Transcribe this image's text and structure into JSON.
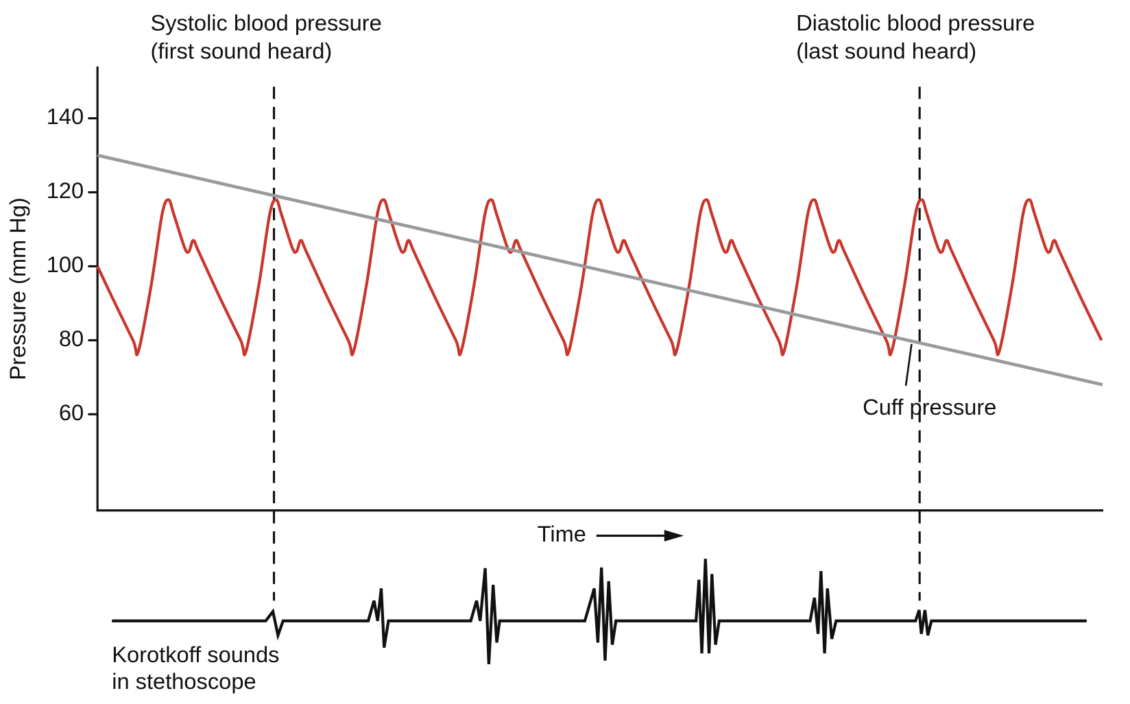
{
  "chart_data": {
    "type": "line",
    "ylabel": "Pressure (mm Hg)",
    "xlabel": "Time",
    "xlim": [
      0,
      9.34
    ],
    "ylim": [
      34,
      154
    ],
    "yticks": [
      60,
      80,
      100,
      120,
      140
    ],
    "series": [
      {
        "color": "#c8372d",
        "x": [
          0,
          0.13,
          0.33,
          0.38,
          0.5,
          0.6,
          0.66,
          0.71,
          0.81,
          0.85,
          0.89,
          0.94,
          1.13,
          1.33,
          1.38,
          1.5,
          1.6,
          1.66,
          1.71,
          1.81,
          1.85,
          1.89,
          1.94,
          2.13,
          2.33,
          2.38,
          2.5,
          2.6,
          2.66,
          2.71,
          2.81,
          2.85,
          2.89,
          2.94,
          3.13,
          3.33,
          3.38,
          3.5,
          3.6,
          3.66,
          3.71,
          3.81,
          3.85,
          3.89,
          3.94,
          4.13,
          4.33,
          4.38,
          4.5,
          4.6,
          4.66,
          4.71,
          4.81,
          4.85,
          4.89,
          4.94,
          5.13,
          5.33,
          5.38,
          5.5,
          5.6,
          5.66,
          5.71,
          5.81,
          5.85,
          5.89,
          5.94,
          6.13,
          6.33,
          6.38,
          6.5,
          6.6,
          6.66,
          6.71,
          6.81,
          6.85,
          6.89,
          6.94,
          7.13,
          7.33,
          7.38,
          7.5,
          7.6,
          7.66,
          7.71,
          7.81,
          7.85,
          7.89,
          7.94,
          8.13,
          8.33,
          8.38,
          8.5,
          8.6,
          8.66,
          8.71,
          8.81,
          8.85,
          8.89,
          8.94,
          9.13,
          9.33
        ],
        "values": [
          100,
          92,
          80,
          77,
          95,
          114,
          118,
          114,
          105,
          104,
          107,
          104,
          92,
          80,
          77,
          95,
          114,
          118,
          114,
          105,
          104,
          107,
          104,
          92,
          80,
          77,
          95,
          114,
          118,
          114,
          105,
          104,
          107,
          104,
          92,
          80,
          77,
          95,
          114,
          118,
          114,
          105,
          104,
          107,
          104,
          92,
          80,
          77,
          95,
          114,
          118,
          114,
          105,
          104,
          107,
          104,
          92,
          80,
          77,
          95,
          114,
          118,
          114,
          105,
          104,
          107,
          104,
          92,
          80,
          77,
          95,
          114,
          118,
          114,
          105,
          104,
          107,
          104,
          92,
          80,
          77,
          95,
          114,
          118,
          114,
          105,
          104,
          107,
          104,
          92,
          80,
          77,
          95,
          114,
          118,
          114,
          105,
          104,
          107,
          104,
          92,
          80
        ]
      },
      {
        "name": "Cuff pressure",
        "color": "#9a9a9e",
        "x": [
          0,
          9.34
        ],
        "values": [
          130,
          68
        ]
      }
    ],
    "annotations": [
      {
        "x": 1.64,
        "lines": [
          "Systolic blood pressure",
          "(first sound heard)"
        ]
      },
      {
        "x": 7.64,
        "lines": [
          "Diastolic blood pressure",
          "(last sound heard)"
        ]
      }
    ],
    "sound_label": [
      "Korotkoff sounds",
      "in stethoscope"
    ]
  }
}
